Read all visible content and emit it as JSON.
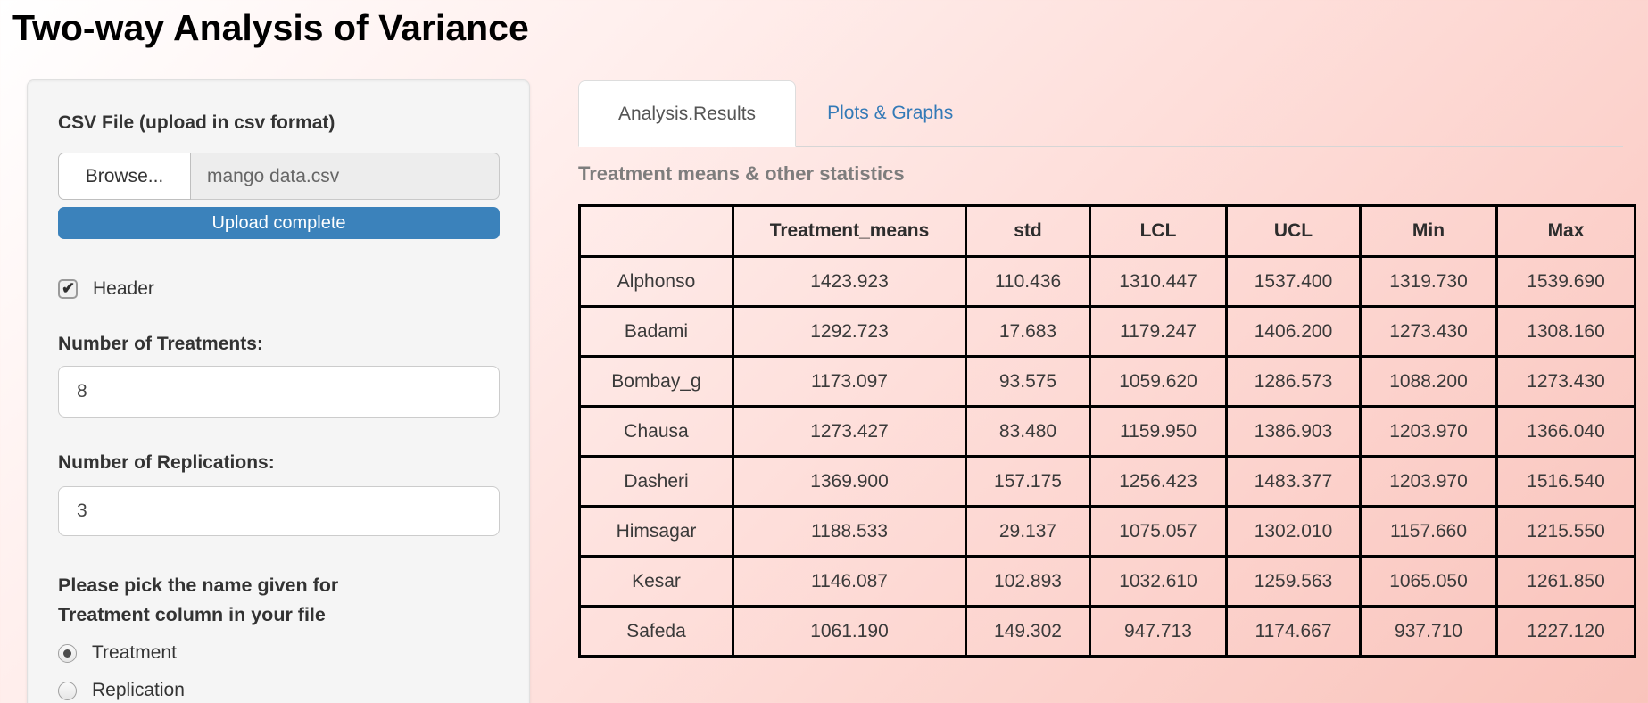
{
  "page": {
    "title": "Two-way Analysis of Variance"
  },
  "colors": {
    "progress_blue": "#3b82bb",
    "link_blue": "#337ab7",
    "section_title_gray": "#7d7d7d",
    "sidebar_gray": "#f5f5f5",
    "background_pink": "#f9c3bb"
  },
  "sidebar": {
    "csv_label": "CSV File (upload in csv format)",
    "browse_label": "Browse...",
    "filename": "mango data.csv",
    "upload_status": "Upload complete",
    "header_checkbox": {
      "label": "Header",
      "checked": true
    },
    "treatments": {
      "label": "Number of Treatments:",
      "value": "8"
    },
    "replications": {
      "label": "Number of Replications:",
      "value": "3"
    },
    "picker": {
      "label": "Please pick the name given for Treatment column in your file",
      "options": [
        {
          "label": "Treatment",
          "selected": true
        },
        {
          "label": "Replication",
          "selected": false
        }
      ]
    }
  },
  "main": {
    "tabs": [
      {
        "label": "Analysis.Results",
        "active": true
      },
      {
        "label": "Plots & Graphs",
        "active": false
      }
    ],
    "section_title": "Treatment means & other statistics",
    "table": {
      "columns": [
        "",
        "Treatment_means",
        "std",
        "LCL",
        "UCL",
        "Min",
        "Max"
      ],
      "rows": [
        {
          "name": "Alphonso",
          "values": [
            "1423.923",
            "110.436",
            "1310.447",
            "1537.400",
            "1319.730",
            "1539.690"
          ]
        },
        {
          "name": "Badami",
          "values": [
            "1292.723",
            "17.683",
            "1179.247",
            "1406.200",
            "1273.430",
            "1308.160"
          ]
        },
        {
          "name": "Bombay_g",
          "values": [
            "1173.097",
            "93.575",
            "1059.620",
            "1286.573",
            "1088.200",
            "1273.430"
          ]
        },
        {
          "name": "Chausa",
          "values": [
            "1273.427",
            "83.480",
            "1159.950",
            "1386.903",
            "1203.970",
            "1366.040"
          ]
        },
        {
          "name": "Dasheri",
          "values": [
            "1369.900",
            "157.175",
            "1256.423",
            "1483.377",
            "1203.970",
            "1516.540"
          ]
        },
        {
          "name": "Himsagar",
          "values": [
            "1188.533",
            "29.137",
            "1075.057",
            "1302.010",
            "1157.660",
            "1215.550"
          ]
        },
        {
          "name": "Kesar",
          "values": [
            "1146.087",
            "102.893",
            "1032.610",
            "1259.563",
            "1065.050",
            "1261.850"
          ]
        },
        {
          "name": "Safeda",
          "values": [
            "1061.190",
            "149.302",
            "947.713",
            "1174.667",
            "937.710",
            "1227.120"
          ]
        }
      ]
    }
  }
}
